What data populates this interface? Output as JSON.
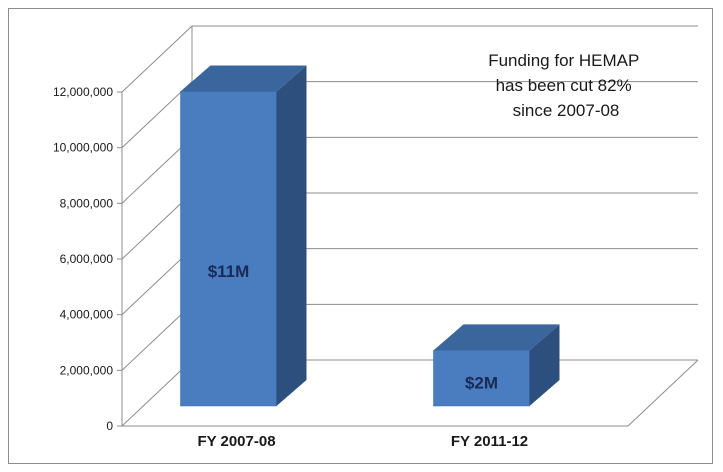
{
  "chart_data": {
    "type": "bar",
    "categories": [
      "FY 2007-08",
      "FY 2011-12"
    ],
    "values": [
      11300000,
      2000000
    ],
    "data_labels": [
      "$11M",
      "$2M"
    ],
    "y_ticks": [
      0,
      2000000,
      4000000,
      6000000,
      8000000,
      10000000,
      12000000
    ],
    "y_tick_labels": [
      "0",
      "2,000,000",
      "4,000,000",
      "6,000,000",
      "8,000,000",
      "10,000,000",
      "12,000,000"
    ],
    "ylim": [
      0,
      12000000
    ],
    "grid": true,
    "legend": "none",
    "annotation": [
      "Funding for HEMAP",
      "has been cut 82%",
      "since 2007-08"
    ],
    "colors": {
      "bar_front": "#4a7cc0",
      "bar_side": "#2d4f7e",
      "bar_top": "#3b659d",
      "grid": "#8c8c8c"
    }
  }
}
